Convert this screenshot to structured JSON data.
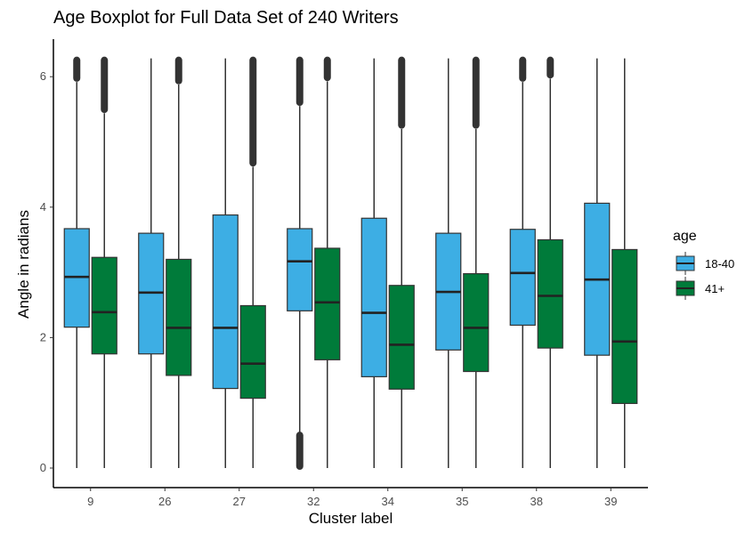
{
  "chart_data": {
    "type": "boxplot",
    "title": "Age Boxplot for Full Data Set of 240 Writers",
    "xlabel": "Cluster label",
    "ylabel": "Angle in radians",
    "ylim": [
      -0.25,
      6.6
    ],
    "yticks": [
      0,
      2,
      4,
      6
    ],
    "categories": [
      "9",
      "26",
      "27",
      "32",
      "34",
      "35",
      "38",
      "39"
    ],
    "legend": {
      "title": "age",
      "position": "right"
    },
    "grid": false,
    "series": [
      {
        "name": "18-40",
        "color": "#3daee4",
        "boxes": [
          {
            "q1": 2.16,
            "median": 2.93,
            "q3": 3.67,
            "whisker_low": 0.0,
            "whisker_high": 5.92,
            "outliers": [
              [
                5.95,
                6.28
              ]
            ]
          },
          {
            "q1": 1.75,
            "median": 2.69,
            "q3": 3.6,
            "whisker_low": 0.0,
            "whisker_high": 6.28,
            "outliers": []
          },
          {
            "q1": 1.22,
            "median": 2.15,
            "q3": 3.88,
            "whisker_low": 0.0,
            "whisker_high": 6.28,
            "outliers": []
          },
          {
            "q1": 2.41,
            "median": 3.17,
            "q3": 3.67,
            "whisker_low": 0.55,
            "whisker_high": 5.55,
            "outliers": [
              [
                5.58,
                6.28
              ],
              [
                0.0,
                0.53
              ]
            ]
          },
          {
            "q1": 1.4,
            "median": 2.38,
            "q3": 3.83,
            "whisker_low": 0.0,
            "whisker_high": 6.28,
            "outliers": []
          },
          {
            "q1": 1.81,
            "median": 2.7,
            "q3": 3.6,
            "whisker_low": 0.0,
            "whisker_high": 6.28,
            "outliers": []
          },
          {
            "q1": 2.19,
            "median": 2.99,
            "q3": 3.66,
            "whisker_low": 0.0,
            "whisker_high": 5.92,
            "outliers": [
              [
                5.95,
                6.28
              ]
            ]
          },
          {
            "q1": 1.73,
            "median": 2.89,
            "q3": 4.06,
            "whisker_low": 0.0,
            "whisker_high": 6.28,
            "outliers": []
          }
        ]
      },
      {
        "name": "41+",
        "color": "#007b3a",
        "boxes": [
          {
            "q1": 1.75,
            "median": 2.39,
            "q3": 3.23,
            "whisker_low": 0.0,
            "whisker_high": 5.44,
            "outliers": [
              [
                5.47,
                6.28
              ]
            ]
          },
          {
            "q1": 1.42,
            "median": 2.15,
            "q3": 3.2,
            "whisker_low": 0.0,
            "whisker_high": 5.88,
            "outliers": [
              [
                5.91,
                6.28
              ]
            ]
          },
          {
            "q1": 1.07,
            "median": 1.6,
            "q3": 2.49,
            "whisker_low": 0.0,
            "whisker_high": 4.62,
            "outliers": [
              [
                4.65,
                6.28
              ]
            ]
          },
          {
            "q1": 1.66,
            "median": 2.54,
            "q3": 3.37,
            "whisker_low": 0.0,
            "whisker_high": 5.93,
            "outliers": [
              [
                5.96,
                6.28
              ]
            ]
          },
          {
            "q1": 1.21,
            "median": 1.89,
            "q3": 2.8,
            "whisker_low": 0.0,
            "whisker_high": 5.2,
            "outliers": [
              [
                5.23,
                6.28
              ]
            ]
          },
          {
            "q1": 1.48,
            "median": 2.15,
            "q3": 2.98,
            "whisker_low": 0.0,
            "whisker_high": 5.2,
            "outliers": [
              [
                5.23,
                6.28
              ]
            ]
          },
          {
            "q1": 1.84,
            "median": 2.64,
            "q3": 3.5,
            "whisker_low": 0.0,
            "whisker_high": 5.97,
            "outliers": [
              [
                6.0,
                6.28
              ]
            ]
          },
          {
            "q1": 0.99,
            "median": 1.94,
            "q3": 3.35,
            "whisker_low": 0.0,
            "whisker_high": 6.28,
            "outliers": []
          }
        ]
      }
    ]
  }
}
